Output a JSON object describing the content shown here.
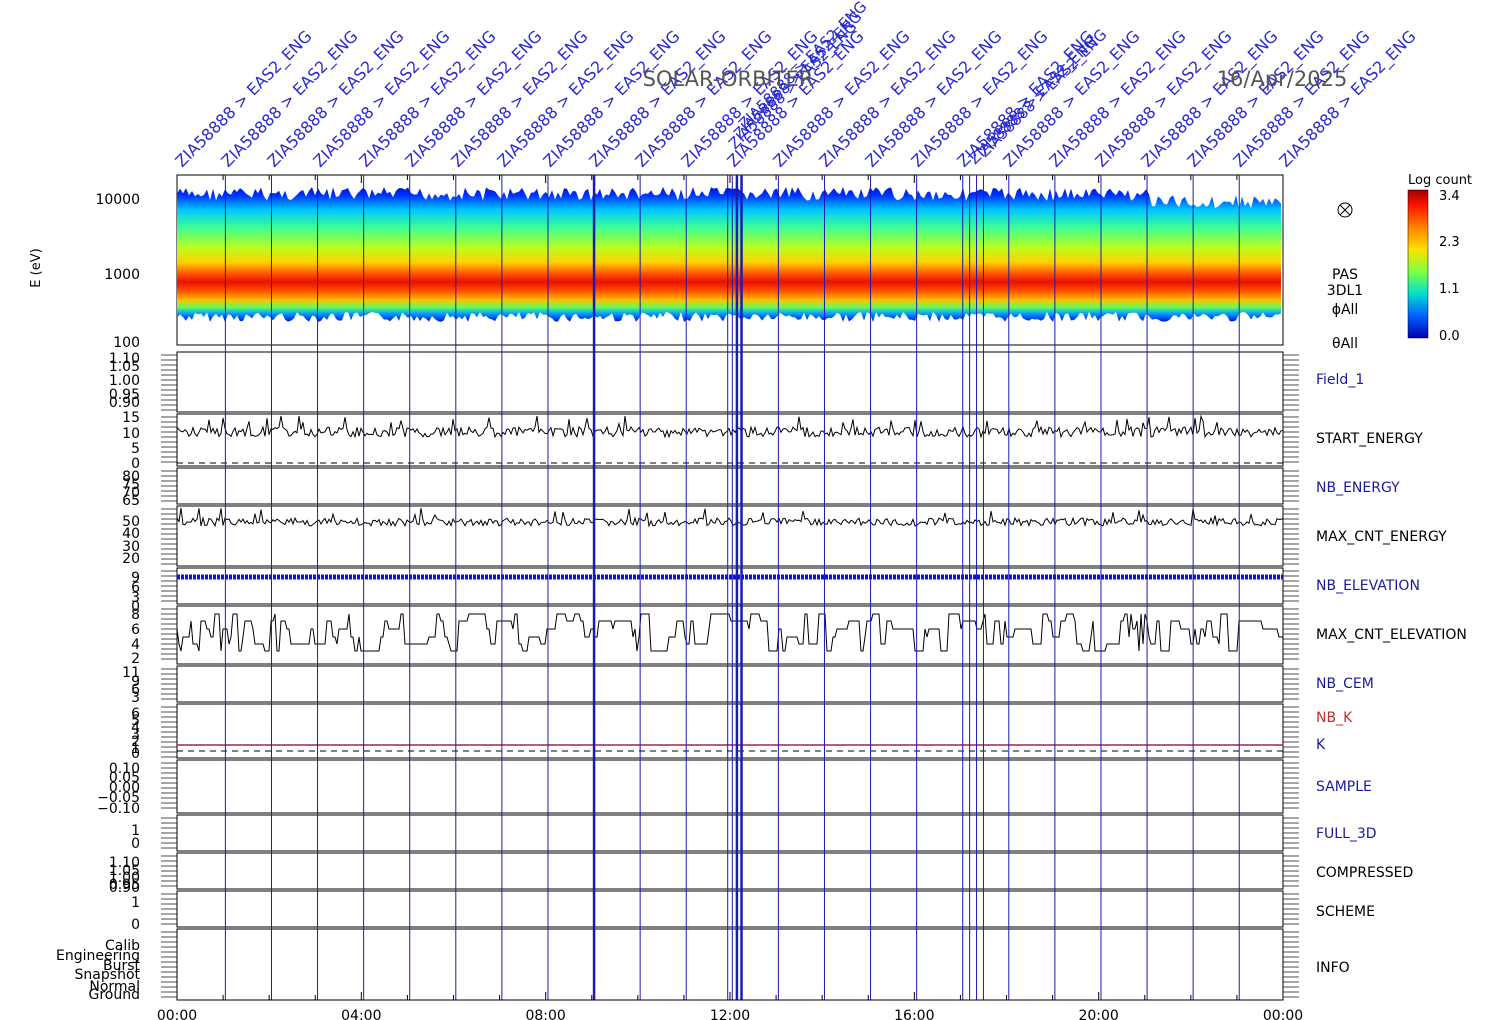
{
  "header": {
    "mission": "SOLAR-ORBITER",
    "date": "16/Apr/2025"
  },
  "event_label": {
    "text": "ZIA58888 > EAS2_ENG",
    "count_regular": 25
  },
  "spectrogram": {
    "ylabel": "E (eV)",
    "y_ticks": [
      "10000",
      "1000",
      "100"
    ],
    "side_labels": [
      "PAS",
      "3DL1",
      "ϕAll",
      "θAll"
    ],
    "colorbar": {
      "title": "Log count",
      "ticks": [
        "3.4",
        "2.3",
        "1.1",
        "0.0"
      ]
    }
  },
  "chart_data": {
    "type": "line",
    "x_ticks": [
      "00:00",
      "04:00",
      "08:00",
      "12:00",
      "16:00",
      "20:00",
      "00:00"
    ],
    "x_range_hours": [
      0,
      24
    ],
    "event_marker_hours": [
      1.05,
      2.05,
      3.05,
      4.05,
      5.05,
      6.05,
      7.05,
      8.05,
      9.05,
      10.05,
      11.05,
      11.95,
      12.05,
      12.15,
      12.25,
      13.05,
      14.05,
      15.05,
      16.05,
      17.05,
      17.2,
      17.35,
      17.5,
      18.05,
      19.05,
      20.05,
      21.05,
      22.05,
      23.05
    ],
    "panels": [
      {
        "name": "Field_1",
        "ticks": [
          "1.10",
          "1.05",
          "1.00",
          "0.95",
          "0.90"
        ],
        "value": "none",
        "label_color": "#1a1aa0"
      },
      {
        "name": "START_ENERGY",
        "ticks": [
          "15",
          "10",
          "5",
          "0"
        ],
        "value": "≈8",
        "label_color": "#000000"
      },
      {
        "name": "NB_ENERGY",
        "ticks": [
          "80",
          "75",
          "70",
          "65"
        ],
        "value": "none",
        "label_color": "#1a1aa0"
      },
      {
        "name": "MAX_CNT_ENERGY",
        "ticks": [
          "50",
          "40",
          "30",
          "20"
        ],
        "value": "≈45",
        "label_color": "#000000"
      },
      {
        "name": "NB_ELEVATION",
        "ticks": [
          "9",
          "6",
          "3",
          "0"
        ],
        "value": "9",
        "label_color": "#1a1aa0"
      },
      {
        "name": "MAX_CNT_ELEVATION",
        "ticks": [
          "8",
          "6",
          "4",
          "2"
        ],
        "value": "2–8",
        "label_color": "#000000"
      },
      {
        "name": "NB_CEM",
        "ticks": [
          "11",
          "9",
          "6",
          "3"
        ],
        "value": "none",
        "label_color": "#1a1aa0"
      },
      {
        "name": "NB_K",
        "ticks": [
          "6",
          "5",
          "4",
          "3",
          "2",
          "1",
          "0"
        ],
        "value": "1",
        "label_color": "#c0302a"
      },
      {
        "name": "K",
        "label_color": "#1a1aa0"
      },
      {
        "name": "SAMPLE",
        "ticks": [
          "0.10",
          "0.05",
          "0.00",
          "−0.05",
          "−0.10"
        ],
        "value": "none",
        "label_color": "#1a1aa0"
      },
      {
        "name": "FULL_3D",
        "ticks": [
          "1",
          "0"
        ],
        "value": "none",
        "label_color": "#1a1aa0"
      },
      {
        "name": "COMPRESSED",
        "ticks": [
          "1.10",
          "1.05",
          "1.00",
          "0.95",
          "0.90"
        ],
        "value": "none",
        "label_color": "#000000"
      },
      {
        "name": "SCHEME",
        "ticks": [
          "1",
          "0"
        ],
        "value": "none",
        "label_color": "#000000"
      },
      {
        "name": "INFO",
        "ticks": [
          "Calib",
          "Engineering",
          "Burst",
          "Snapshot",
          "Normal",
          "Ground"
        ],
        "value": "none",
        "label_color": "#000000"
      }
    ]
  }
}
